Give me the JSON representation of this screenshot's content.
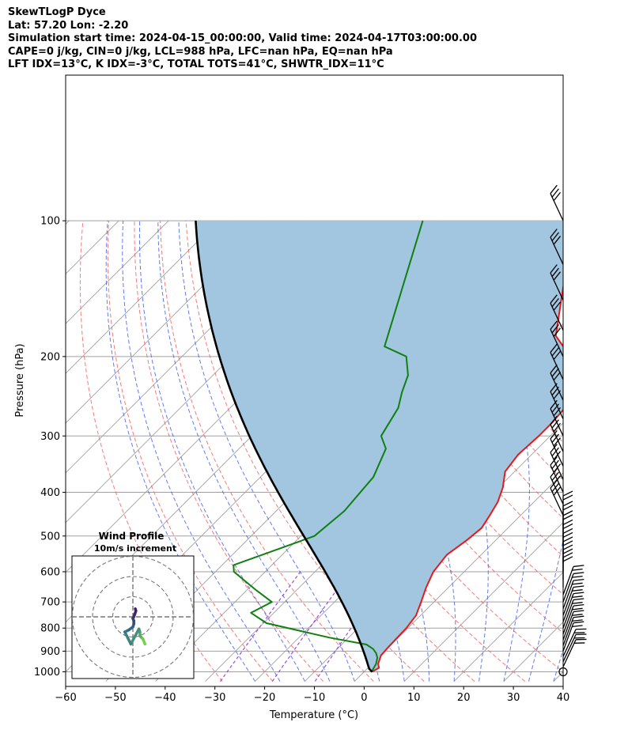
{
  "header": {
    "line1": "SkewTLogP Dyce",
    "line2": "Lat: 57.20   Lon: -2.20",
    "line3": "Simulation start time: 2024-04-15_00:00:00, Valid time: 2024-04-17T03:00:00.00",
    "line4": "CAPE=0 j/kg, CIN=0 j/kg, LCL=988 hPa, LFC=nan hPa, EQ=nan hPa",
    "line5": "LFT IDX=13°C, K IDX=-3°C, TOTAL TOTS=41°C, SHWTR_IDX=11°C"
  },
  "chart_data": {
    "type": "line",
    "title": "SkewTLogP Dyce",
    "xlabel": "Temperature (°C)",
    "ylabel": "Pressure (hPa)",
    "xlim": [
      -60,
      40
    ],
    "ylim": [
      1050,
      100
    ],
    "yscale": "log",
    "skew": true,
    "x_ticks": [
      "−60",
      "−50",
      "−40",
      "−30",
      "−20",
      "−10",
      "0",
      "10",
      "20",
      "30",
      "40"
    ],
    "y_ticks": [
      "100",
      "200",
      "300",
      "400",
      "500",
      "600",
      "700",
      "800",
      "900",
      "1000"
    ],
    "grid": true,
    "colors": {
      "temperature": "#e41a1c",
      "dewpoint": "#108010",
      "parcel": "#000000",
      "cin_area": "#a2c6df",
      "dry_adiabats": "#f25a5a",
      "moist_adiabats": "#3a5af0",
      "mixing_ratio": "#9a4ad6",
      "isotherms": "#a0a0a0",
      "hodo_start": "#72d348",
      "hodo_end": "#46185c"
    },
    "series": [
      {
        "key": "temperature",
        "x": [
          1.6,
          2.2,
          1.2,
          0.1,
          -0.1,
          -0.3,
          -0.9,
          -2.6,
          -4.5,
          -6.2,
          -6.9,
          -5.8,
          -5.3,
          -6.2,
          -7.3,
          -9.2,
          -11.9,
          -12.7,
          -12.3,
          -12.3,
          -12.7,
          -13.6,
          -17.6,
          -21.9,
          -29.0,
          -37.4,
          -46.0
        ],
        "y": [
          1000,
          980,
          960,
          920,
          880,
          800,
          750,
          700,
          650,
          600,
          550,
          510,
          480,
          450,
          420,
          390,
          360,
          330,
          300,
          280,
          260,
          240,
          220,
          200,
          180,
          140,
          100
        ]
      },
      {
        "key": "dewpoint",
        "x": [
          1.5,
          0.8,
          -0.2,
          -1.3,
          -2.8,
          -5.0,
          -13.8,
          -29.4,
          -34.6,
          -32.6,
          -38.0,
          -46.3,
          -47.7,
          -37.3,
          -36.3,
          -37.3,
          -40.5,
          -44.0,
          -46.2,
          -48.6,
          -50.8,
          -54.9,
          -61.3,
          -78.9
        ],
        "y": [
          1000,
          960,
          930,
          910,
          890,
          870,
          840,
          780,
          740,
          700,
          660,
          600,
          580,
          500,
          440,
          370,
          320,
          300,
          260,
          240,
          220,
          200,
          190,
          100
        ]
      },
      {
        "key": "parcel",
        "x": [
          1.6,
          -0.8,
          -11.1,
          -32.0,
          -61.9,
          -91.5
        ],
        "y": [
          1000,
          975,
          850,
          650,
          440,
          300
        ]
      }
    ],
    "wind_profile": {
      "title": "Wind Profile",
      "subtitle": "10m/s increment",
      "rings": [
        10,
        20,
        30
      ],
      "u": [
        6.0,
        5.0,
        4.0,
        3.5,
        3.5,
        3.0,
        -1.0,
        -4.0,
        -2.0,
        0.0,
        0.5,
        0.5,
        0.0,
        0.5,
        1.0,
        1.5,
        1.2
      ],
      "v": [
        -13.5,
        -11.0,
        -10.0,
        -9.5,
        -7.5,
        -6.0,
        -13.5,
        -7.5,
        -6.5,
        -5.0,
        -3.5,
        -2.0,
        -0.8,
        0.0,
        1.5,
        3.0,
        4.0
      ]
    }
  }
}
